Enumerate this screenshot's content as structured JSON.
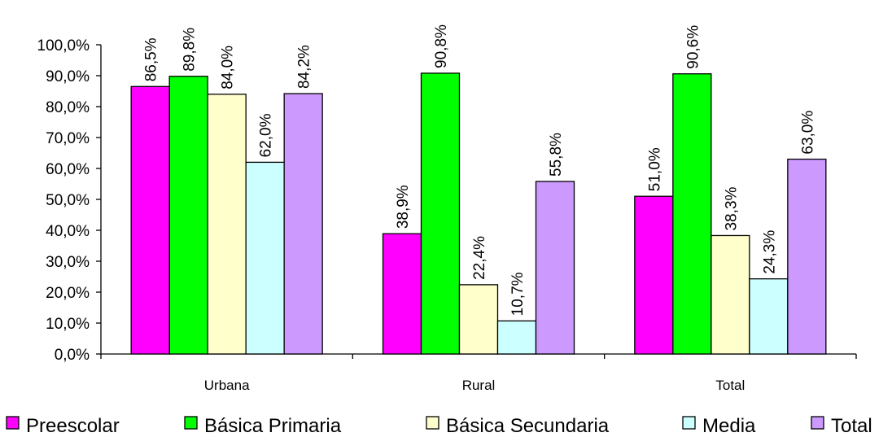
{
  "chart_data": {
    "type": "bar",
    "categories": [
      "Urbana",
      "Rural",
      "Total"
    ],
    "series": [
      {
        "name": "Preescolar",
        "color": "#ff00ff",
        "values": [
          86.5,
          38.9,
          51.0
        ],
        "labels": [
          "86,5%",
          "38,9%",
          "51,0%"
        ]
      },
      {
        "name": "Básica Primaria",
        "color": "#00ff00",
        "values": [
          89.8,
          90.8,
          90.6
        ],
        "labels": [
          "89,8%",
          "90,8%",
          "90,6%"
        ]
      },
      {
        "name": "Básica Secundaria",
        "color": "#ffffcc",
        "values": [
          84.0,
          22.4,
          38.3
        ],
        "labels": [
          "84,0%",
          "22,4%",
          "38,3%"
        ]
      },
      {
        "name": "Media",
        "color": "#ccffff",
        "values": [
          62.0,
          10.7,
          24.3
        ],
        "labels": [
          "62,0%",
          "10,7%",
          "24,3%"
        ]
      },
      {
        "name": "Total",
        "color": "#cc99ff",
        "values": [
          84.2,
          55.8,
          63.0
        ],
        "labels": [
          "84,2%",
          "55,8%",
          "63,0%"
        ]
      }
    ],
    "ylim": [
      0,
      100
    ],
    "yticks": [
      0,
      10,
      20,
      30,
      40,
      50,
      60,
      70,
      80,
      90,
      100
    ],
    "ytick_labels": [
      "0,0%",
      "10,0%",
      "20,0%",
      "30,0%",
      "40,0%",
      "50,0%",
      "60,0%",
      "70,0%",
      "80,0%",
      "90,0%",
      "100,0%"
    ],
    "grid": false,
    "legend_position": "bottom"
  }
}
